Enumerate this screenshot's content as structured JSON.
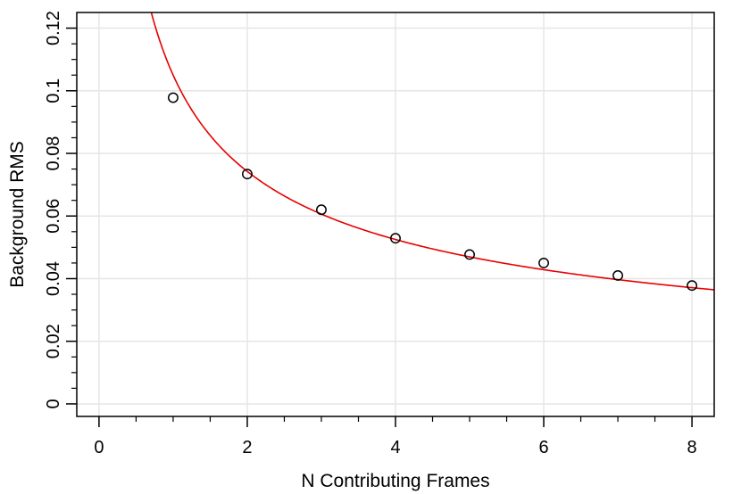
{
  "chart_data": {
    "type": "scatter",
    "title": "",
    "xlabel": "N Contributing Frames",
    "ylabel": "Background RMS",
    "xlim": [
      -0.3,
      8.3
    ],
    "ylim": [
      -0.004,
      0.125
    ],
    "grid": true,
    "x_ticks": [
      0,
      2,
      4,
      6,
      8
    ],
    "x_tick_labels": [
      "0",
      "2",
      "4",
      "6",
      "8"
    ],
    "y_ticks": [
      0,
      0.02,
      0.04,
      0.06,
      0.08,
      0.1,
      0.12
    ],
    "y_tick_labels": [
      "0",
      "0.02",
      "0.04",
      "0.06",
      "0.08",
      "0.1",
      "0.12"
    ],
    "points": {
      "x": [
        1,
        2,
        3,
        4,
        5,
        6,
        7,
        8
      ],
      "y": [
        0.0978,
        0.0734,
        0.062,
        0.0529,
        0.0477,
        0.045,
        0.041,
        0.0378
      ]
    },
    "fit_curve": {
      "form": "a / sqrt(x)",
      "a": 0.105,
      "color": "#e60000"
    },
    "point_color": "#000000"
  }
}
